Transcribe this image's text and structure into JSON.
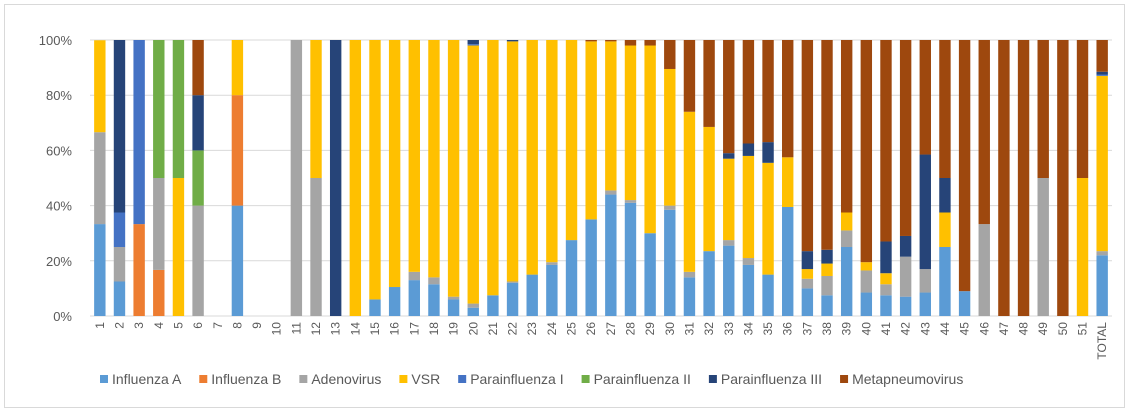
{
  "chart_data": {
    "type": "stacked_bar_100",
    "categories": [
      "1",
      "2",
      "3",
      "4",
      "5",
      "6",
      "7",
      "8",
      "9",
      "10",
      "11",
      "12",
      "13",
      "14",
      "15",
      "16",
      "17",
      "18",
      "19",
      "20",
      "21",
      "22",
      "23",
      "24",
      "25",
      "26",
      "27",
      "28",
      "29",
      "30",
      "31",
      "32",
      "33",
      "34",
      "35",
      "36",
      "37",
      "38",
      "39",
      "40",
      "41",
      "42",
      "43",
      "44",
      "45",
      "46",
      "47",
      "48",
      "49",
      "50",
      "51",
      "TOTAL"
    ],
    "series": [
      {
        "name": "Influenza A",
        "color": "#5b9bd5",
        "values": [
          33.3,
          12.5,
          0,
          0,
          0,
          0,
          0,
          40,
          0,
          0,
          0,
          0,
          0,
          0,
          6,
          10.5,
          13,
          11.5,
          6,
          3,
          7.5,
          12,
          15,
          18.5,
          27.5,
          35,
          44,
          41,
          30,
          38.5,
          14,
          23.5,
          25.5,
          18.5,
          15,
          39.5,
          10,
          7.5,
          25,
          8.5,
          7.5,
          7,
          8.5,
          25,
          9,
          0,
          0,
          0,
          0,
          0,
          0,
          22
        ]
      },
      {
        "name": "Influenza B",
        "color": "#ed7d31",
        "values": [
          0,
          0,
          33.3,
          16.7,
          0,
          0,
          0,
          40,
          0,
          0,
          0,
          0,
          0,
          0,
          0,
          0,
          0,
          0,
          0,
          0,
          0,
          0,
          0,
          0,
          0,
          0,
          0,
          0,
          0,
          0,
          0,
          0,
          0,
          0,
          0,
          0,
          0,
          0,
          0,
          0,
          0,
          0,
          0,
          0,
          0,
          0,
          0,
          0,
          0,
          0,
          0,
          0
        ]
      },
      {
        "name": "Adenovirus",
        "color": "#a5a5a5",
        "values": [
          33.3,
          12.5,
          0,
          33.3,
          0,
          40,
          0,
          0,
          0,
          0,
          100,
          50,
          0,
          0,
          0,
          0,
          3,
          2.5,
          1,
          1.5,
          0,
          0.5,
          0,
          1,
          0,
          0,
          1.5,
          1,
          0,
          1.5,
          2,
          0,
          2,
          2.5,
          0,
          0,
          3.5,
          7,
          6,
          8,
          4,
          14.5,
          8.5,
          0,
          0,
          33.3,
          0,
          0,
          50,
          0,
          0,
          1.5
        ]
      },
      {
        "name": "VSR",
        "color": "#ffc000",
        "values": [
          33.3,
          0,
          0,
          0,
          50,
          0,
          0,
          20,
          0,
          0,
          0,
          50,
          0,
          100,
          94,
          89.5,
          84,
          86,
          93,
          93.5,
          92.5,
          87,
          85,
          80.5,
          72.5,
          64.5,
          54,
          56,
          68,
          49.5,
          58,
          45,
          29.5,
          37,
          40.5,
          18,
          3.5,
          4.5,
          6.5,
          3,
          4,
          0,
          0,
          12.5,
          0,
          0,
          0,
          0,
          0,
          0,
          50,
          63.5
        ]
      },
      {
        "name": "Parainfluenza I",
        "color": "#4472c4",
        "values": [
          0,
          12.5,
          66.7,
          0,
          0,
          0,
          0,
          0,
          0,
          0,
          0,
          0,
          0,
          0,
          0,
          0,
          0,
          0,
          0,
          0.5,
          0,
          0,
          0,
          0,
          0,
          0,
          0,
          0,
          0,
          0,
          0,
          0,
          0,
          0,
          0,
          0,
          0,
          0,
          0,
          0,
          0,
          0,
          0,
          0,
          0,
          0,
          0,
          0,
          0,
          0,
          0,
          0.5
        ]
      },
      {
        "name": "Parainfluenza II",
        "color": "#70ad47",
        "values": [
          0,
          0,
          0,
          50,
          50,
          20,
          0,
          0,
          0,
          0,
          0,
          0,
          0,
          0,
          0,
          0,
          0,
          0,
          0,
          0,
          0,
          0,
          0,
          0,
          0,
          0,
          0,
          0,
          0,
          0,
          0,
          0,
          0,
          0,
          0,
          0,
          0,
          0,
          0,
          0,
          0,
          0,
          0,
          0,
          0,
          0,
          0,
          0,
          0,
          0,
          0,
          0
        ]
      },
      {
        "name": "Parainfluenza III",
        "color": "#264478",
        "values": [
          0,
          62.5,
          0,
          0,
          0,
          20,
          0,
          0,
          0,
          0,
          0,
          0,
          100,
          0,
          0,
          0,
          0,
          0,
          0,
          1.5,
          0,
          0.5,
          0,
          0,
          0,
          0,
          0,
          0,
          0,
          0,
          0,
          0,
          2,
          4.5,
          7.5,
          0,
          6.5,
          5,
          0,
          0,
          11.5,
          7.5,
          41.5,
          12.5,
          0,
          0,
          0,
          0,
          0,
          0,
          0,
          1
        ]
      },
      {
        "name": "Metapneumovirus",
        "color": "#9e480e",
        "values": [
          0,
          0,
          0,
          0,
          0,
          20,
          0,
          0,
          0,
          0,
          0,
          0,
          0,
          0,
          0,
          0,
          0,
          0,
          0,
          0,
          0,
          0,
          0,
          0,
          0,
          0.5,
          0.5,
          2,
          2,
          10.5,
          26,
          31.5,
          41,
          37.5,
          37,
          42.5,
          76.5,
          76,
          62.5,
          80.5,
          73,
          71,
          41.5,
          50,
          91,
          66.7,
          100,
          100,
          50,
          100,
          50,
          11.5
        ]
      }
    ],
    "ylim": [
      0,
      100
    ],
    "yticks": [
      {
        "value": 0,
        "label": "0%"
      },
      {
        "value": 20,
        "label": "20%"
      },
      {
        "value": 40,
        "label": "40%"
      },
      {
        "value": 60,
        "label": "60%"
      },
      {
        "value": 80,
        "label": "80%"
      },
      {
        "value": 100,
        "label": "100%"
      }
    ],
    "grid": true,
    "legend": "bottom"
  }
}
